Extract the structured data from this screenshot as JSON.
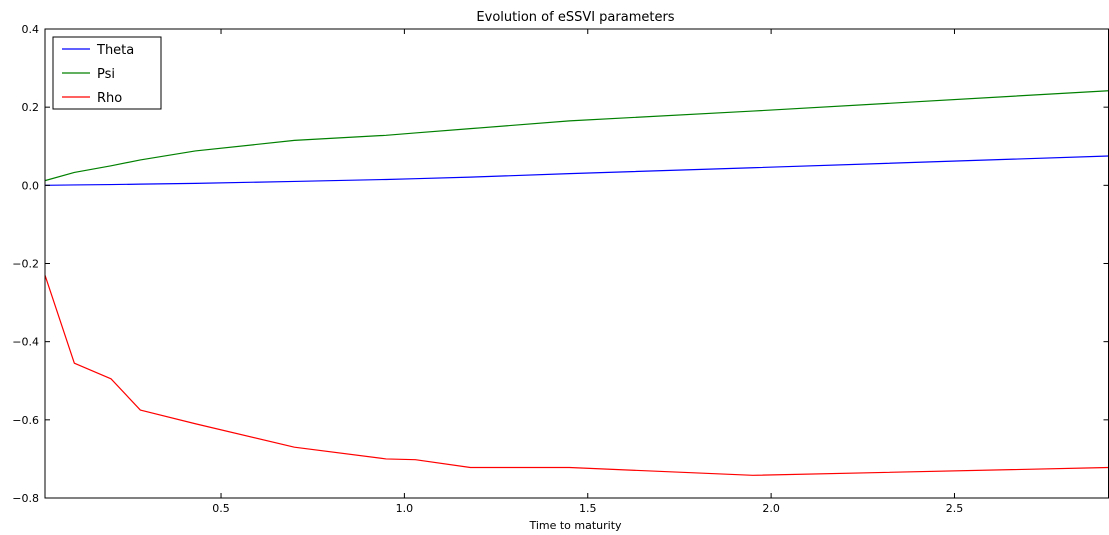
{
  "chart_data": {
    "type": "line",
    "title": "Evolution of eSSVI parameters",
    "xlabel": "Time to maturity",
    "ylabel": "",
    "xlim": [
      0.02,
      2.92
    ],
    "ylim": [
      -0.8,
      0.4
    ],
    "xticks": [
      0.5,
      1.0,
      1.5,
      2.0,
      2.5
    ],
    "xtick_labels": [
      "0.5",
      "1.0",
      "1.5",
      "2.0",
      "2.5"
    ],
    "yticks": [
      -0.8,
      -0.6,
      -0.4,
      -0.2,
      0.0,
      0.2,
      0.4
    ],
    "ytick_labels": [
      "−0.8",
      "−0.6",
      "−0.4",
      "−0.2",
      "0.0",
      "0.2",
      "0.4"
    ],
    "grid": false,
    "legend": "top-left",
    "series": [
      {
        "name": "Theta",
        "color": "#0000ff",
        "x": [
          0.02,
          0.1,
          0.2,
          0.28,
          0.43,
          0.7,
          0.95,
          1.03,
          1.18,
          1.45,
          1.95,
          2.92
        ],
        "y": [
          0.0,
          0.001,
          0.002,
          0.003,
          0.005,
          0.01,
          0.015,
          0.017,
          0.021,
          0.03,
          0.045,
          0.075
        ]
      },
      {
        "name": "Psi",
        "color": "#008000",
        "x": [
          0.02,
          0.1,
          0.2,
          0.28,
          0.43,
          0.7,
          0.95,
          1.03,
          1.18,
          1.45,
          1.95,
          2.92
        ],
        "y": [
          0.012,
          0.033,
          0.05,
          0.065,
          0.088,
          0.115,
          0.128,
          0.134,
          0.145,
          0.165,
          0.19,
          0.242
        ]
      },
      {
        "name": "Rho",
        "color": "#ff0000",
        "x": [
          0.02,
          0.1,
          0.2,
          0.28,
          0.43,
          0.7,
          0.95,
          1.03,
          1.18,
          1.45,
          1.95,
          2.92
        ],
        "y": [
          -0.23,
          -0.455,
          -0.495,
          -0.575,
          -0.61,
          -0.67,
          -0.7,
          -0.702,
          -0.722,
          -0.722,
          -0.742,
          -0.722
        ]
      }
    ]
  }
}
